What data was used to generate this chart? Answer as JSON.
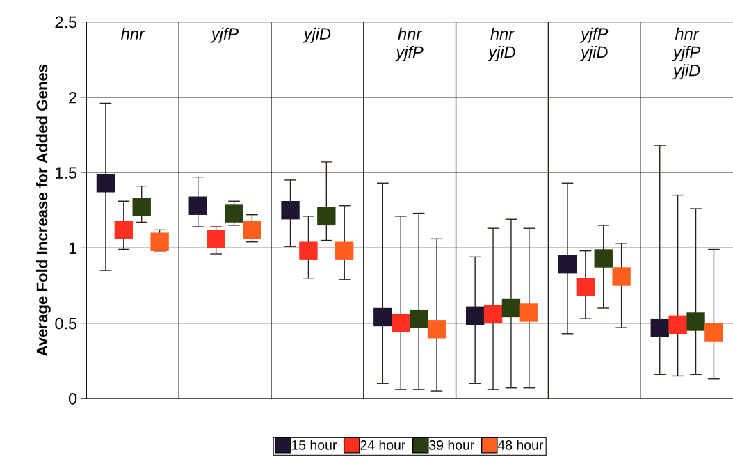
{
  "chart_data": {
    "type": "scatter",
    "ylabel": "Average Fold Increase for Added Genes",
    "categories": [
      "hnr",
      "yjfP",
      "yjiD",
      "hnr\nyjfP",
      "hnr\nyjiD",
      "yjfP\nyjiD",
      "hnr\nyjfP\nyjiD"
    ],
    "series": [
      {
        "name": "15 hour",
        "color": "#1e1530",
        "values": [
          1.43,
          1.28,
          1.25,
          0.54,
          0.55,
          0.89,
          0.47
        ],
        "errors": [
          [
            0.85,
            1.96
          ],
          [
            1.14,
            1.47
          ],
          [
            1.01,
            1.45
          ],
          [
            0.1,
            1.43
          ],
          [
            0.1,
            0.94
          ],
          [
            0.43,
            1.43
          ],
          [
            0.16,
            1.68
          ]
        ]
      },
      {
        "name": "24 hour",
        "color": "#ff3020",
        "values": [
          1.12,
          1.06,
          0.98,
          0.5,
          0.56,
          0.74,
          0.49
        ],
        "errors": [
          [
            0.99,
            1.31
          ],
          [
            0.96,
            1.14
          ],
          [
            0.8,
            1.21
          ],
          [
            0.06,
            1.21
          ],
          [
            0.06,
            1.13
          ],
          [
            0.53,
            0.98
          ],
          [
            0.15,
            1.35
          ]
        ]
      },
      {
        "name": "39 hour",
        "color": "#2b4010",
        "values": [
          1.27,
          1.23,
          1.21,
          0.53,
          0.6,
          0.93,
          0.51
        ],
        "errors": [
          [
            1.17,
            1.41
          ],
          [
            1.15,
            1.31
          ],
          [
            1.05,
            1.57
          ],
          [
            0.06,
            1.23
          ],
          [
            0.07,
            1.19
          ],
          [
            0.6,
            1.15
          ],
          [
            0.16,
            1.26
          ]
        ]
      },
      {
        "name": "48 hour",
        "color": "#ff6020",
        "values": [
          1.04,
          1.12,
          0.98,
          0.46,
          0.57,
          0.81,
          0.44
        ],
        "errors": [
          [
            0.98,
            1.12
          ],
          [
            1.04,
            1.22
          ],
          [
            0.79,
            1.28
          ],
          [
            0.05,
            1.06
          ],
          [
            0.07,
            1.13
          ],
          [
            0.47,
            1.03
          ],
          [
            0.13,
            0.99
          ]
        ]
      }
    ],
    "ylim": [
      0,
      2.5
    ],
    "yticks": [
      0,
      0.5,
      1,
      1.5,
      2,
      2.5
    ],
    "grid": true,
    "legend": "bottom",
    "marker": "square"
  }
}
